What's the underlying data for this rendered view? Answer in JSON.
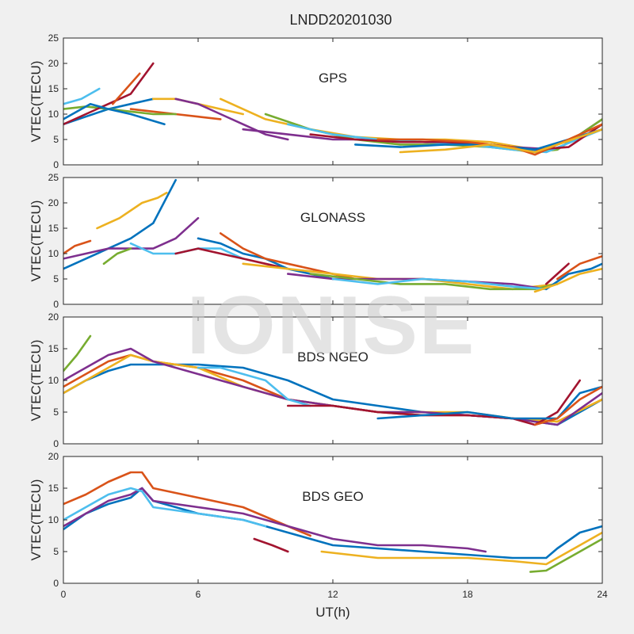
{
  "figure_title": "LNDD20201030",
  "watermark": "IONISE",
  "colors": [
    "#0072BD",
    "#D95319",
    "#EDB120",
    "#7E2F8E",
    "#77AC30",
    "#4DBEEE",
    "#A2142F"
  ],
  "chart_data": [
    {
      "type": "line",
      "label": "GPS",
      "ylabel": "VTEC(TECU)",
      "xlim": [
        0,
        24
      ],
      "ylim": [
        0,
        25
      ],
      "yticks": [
        0,
        5,
        10,
        15,
        20,
        25
      ],
      "xticks": [
        0,
        6,
        12,
        18,
        24
      ],
      "series": [
        {
          "x": [
            0,
            1,
            2,
            3,
            4
          ],
          "y": [
            8,
            9.5,
            11,
            12,
            13
          ]
        },
        {
          "x": [
            3,
            4,
            5,
            6,
            7
          ],
          "y": [
            11,
            10.5,
            10,
            9.5,
            9
          ]
        },
        {
          "x": [
            4,
            5,
            6,
            7,
            8
          ],
          "y": [
            13,
            13,
            12,
            11,
            10
          ]
        },
        {
          "x": [
            5,
            6,
            7,
            8,
            9,
            10
          ],
          "y": [
            13,
            12,
            10,
            8,
            6,
            5
          ]
        },
        {
          "x": [
            0,
            1,
            2,
            3,
            4,
            5
          ],
          "y": [
            11,
            11.5,
            11,
            10.5,
            10,
            10
          ]
        },
        {
          "x": [
            0,
            0.8,
            1.6
          ],
          "y": [
            12,
            13,
            15
          ]
        },
        {
          "x": [
            0,
            1,
            2,
            3,
            4
          ],
          "y": [
            8,
            10,
            12,
            14,
            20
          ]
        },
        {
          "x": [
            0,
            1.2,
            2,
            3,
            4.5
          ],
          "y": [
            9,
            12,
            11,
            10,
            8
          ]
        },
        {
          "x": [
            2.2,
            2.8,
            3.4
          ],
          "y": [
            12,
            15,
            18
          ]
        },
        {
          "x": [
            7,
            9,
            11,
            13,
            15,
            17,
            19,
            21,
            22,
            24
          ],
          "y": [
            13,
            9,
            7,
            5.5,
            5,
            5,
            4.5,
            3,
            4,
            8
          ]
        },
        {
          "x": [
            8,
            10,
            12,
            14,
            16,
            18,
            20,
            22,
            24
          ],
          "y": [
            7,
            6,
            5,
            5,
            4.5,
            4,
            3.5,
            3,
            9
          ]
        },
        {
          "x": [
            9,
            11,
            13,
            15,
            17,
            19,
            21,
            22,
            24
          ],
          "y": [
            10,
            7,
            5,
            4,
            4,
            3.5,
            2.5,
            3,
            9
          ]
        },
        {
          "x": [
            10,
            12,
            14,
            16,
            18,
            20,
            21.5,
            24
          ],
          "y": [
            8,
            6,
            5,
            4.5,
            4,
            3,
            2.5,
            7
          ]
        },
        {
          "x": [
            11,
            13,
            15,
            17,
            19,
            21,
            22.5,
            24
          ],
          "y": [
            6,
            5,
            4.5,
            4.5,
            4,
            3,
            3.5,
            8
          ]
        },
        {
          "x": [
            13,
            15,
            17,
            19,
            21,
            24
          ],
          "y": [
            4,
            3.5,
            4,
            4,
            3,
            7
          ]
        },
        {
          "x": [
            14,
            16,
            18,
            20,
            21,
            24
          ],
          "y": [
            5,
            5,
            4.5,
            3.5,
            2,
            8
          ]
        },
        {
          "x": [
            15,
            17,
            19,
            21,
            24
          ],
          "y": [
            2.5,
            3,
            4,
            2.5,
            7
          ]
        }
      ]
    },
    {
      "type": "line",
      "label": "GLONASS",
      "ylabel": "VTEC(TECU)",
      "xlim": [
        0,
        24
      ],
      "ylim": [
        0,
        25
      ],
      "yticks": [
        0,
        5,
        10,
        15,
        20,
        25
      ],
      "xticks": [
        0,
        6,
        12,
        18,
        24
      ],
      "series": [
        {
          "x": [
            0,
            1,
            2,
            3,
            4,
            5
          ],
          "y": [
            7,
            9,
            11,
            13,
            16,
            24.5
          ]
        },
        {
          "x": [
            0,
            0.5,
            1.2
          ],
          "y": [
            10,
            11.5,
            12.5
          ]
        },
        {
          "x": [
            1.5,
            2.5,
            3.5,
            4.2,
            4.6
          ],
          "y": [
            15,
            17,
            20,
            21,
            22
          ]
        },
        {
          "x": [
            0,
            1,
            2,
            3,
            4,
            5,
            6
          ],
          "y": [
            9,
            10,
            11,
            11,
            11,
            13,
            17
          ]
        },
        {
          "x": [
            1.8,
            2.4,
            3
          ],
          "y": [
            8,
            10,
            11
          ]
        },
        {
          "x": [
            3,
            4,
            5,
            6,
            7,
            8
          ],
          "y": [
            12,
            10,
            10,
            11,
            11,
            9
          ]
        },
        {
          "x": [
            5,
            6,
            7,
            8,
            9,
            10
          ],
          "y": [
            10,
            11,
            10,
            9,
            8,
            7
          ]
        },
        {
          "x": [
            6,
            7,
            8,
            9,
            10,
            11,
            12
          ],
          "y": [
            13,
            12,
            10,
            9,
            7,
            6,
            5
          ]
        },
        {
          "x": [
            7,
            8,
            9,
            10,
            11,
            12,
            13
          ],
          "y": [
            14,
            11,
            9,
            8,
            7,
            6,
            5
          ]
        },
        {
          "x": [
            8,
            10,
            12,
            14,
            16,
            18,
            20,
            22
          ],
          "y": [
            8,
            7,
            6,
            5,
            5,
            4,
            3,
            4
          ]
        },
        {
          "x": [
            10,
            12,
            14,
            16,
            18,
            20,
            21.5
          ],
          "y": [
            6,
            5,
            5,
            5,
            4.5,
            4,
            3
          ]
        },
        {
          "x": [
            11,
            13,
            15,
            17,
            19,
            21,
            22
          ],
          "y": [
            6,
            5,
            4,
            4,
            3,
            3,
            4
          ]
        },
        {
          "x": [
            12,
            14,
            16,
            18,
            20,
            21.5
          ],
          "y": [
            5,
            4,
            5,
            4.5,
            3.5,
            3
          ]
        },
        {
          "x": [
            21.5,
            22,
            22.5
          ],
          "y": [
            4,
            6,
            8
          ]
        },
        {
          "x": [
            21.5,
            22.5,
            23.5,
            24
          ],
          "y": [
            3,
            6,
            7,
            8
          ]
        },
        {
          "x": [
            22,
            23,
            24
          ],
          "y": [
            5,
            8,
            9.5
          ]
        },
        {
          "x": [
            21,
            22,
            23,
            24
          ],
          "y": [
            2.5,
            4,
            6,
            7
          ]
        }
      ]
    },
    {
      "type": "line",
      "label": "BDS NGEO",
      "ylabel": "VTEC(TECU)",
      "xlim": [
        0,
        24
      ],
      "ylim": [
        0,
        20
      ],
      "yticks": [
        0,
        5,
        10,
        15,
        20
      ],
      "xticks": [
        0,
        6,
        12,
        18,
        24
      ],
      "series": [
        {
          "x": [
            0,
            1,
            2,
            3,
            4,
            6,
            8,
            10,
            12,
            14,
            16,
            18,
            20,
            22,
            24
          ],
          "y": [
            8,
            10,
            11.5,
            12.5,
            12.5,
            12.5,
            12,
            10,
            7,
            6,
            5,
            4.5,
            4,
            3,
            7
          ]
        },
        {
          "x": [
            0,
            1,
            2,
            3,
            4,
            6,
            8,
            10,
            12,
            14,
            16,
            18,
            20,
            22,
            24
          ],
          "y": [
            9,
            11,
            13,
            14,
            13,
            12,
            10,
            7,
            6,
            5,
            4.5,
            4.5,
            4,
            3.5,
            7
          ]
        },
        {
          "x": [
            0,
            1,
            2,
            3,
            4,
            6,
            8,
            10,
            12,
            14,
            16,
            18,
            20,
            22,
            24
          ],
          "y": [
            8,
            10,
            12,
            14,
            13,
            12,
            9,
            7,
            6,
            5,
            5,
            5,
            4,
            3.5,
            7
          ]
        },
        {
          "x": [
            0,
            1,
            2,
            3,
            4,
            6,
            8,
            10,
            12,
            14,
            16,
            18,
            20,
            22,
            24
          ],
          "y": [
            10,
            12,
            14,
            15,
            13,
            11,
            9,
            7,
            6,
            5,
            5,
            4.5,
            4,
            3,
            8
          ]
        },
        {
          "x": [
            0,
            0.6,
            1.2
          ],
          "y": [
            11.5,
            14,
            17
          ]
        },
        {
          "x": [
            6,
            7,
            8,
            9,
            10,
            11
          ],
          "y": [
            12,
            12,
            11,
            10,
            7,
            6
          ]
        },
        {
          "x": [
            10,
            12,
            14,
            16,
            18,
            20,
            21,
            22,
            23
          ],
          "y": [
            6,
            6,
            5,
            4.5,
            4.5,
            4,
            3,
            5,
            10
          ]
        },
        {
          "x": [
            14,
            16,
            18,
            20,
            22,
            23,
            24
          ],
          "y": [
            4,
            4.5,
            5,
            4,
            4,
            8,
            9
          ]
        },
        {
          "x": [
            21,
            22,
            23,
            24
          ],
          "y": [
            3,
            4,
            7,
            9
          ]
        }
      ]
    },
    {
      "type": "line",
      "label": "BDS GEO",
      "ylabel": "VTEC(TECU)",
      "xlim": [
        0,
        24
      ],
      "ylim": [
        0,
        20
      ],
      "yticks": [
        0,
        5,
        10,
        15,
        20
      ],
      "xticks": [
        0,
        6,
        12,
        18,
        24
      ],
      "series": [
        {
          "x": [
            0,
            1,
            2,
            3,
            3.5,
            4,
            6,
            8,
            10,
            12,
            14,
            16,
            18,
            20,
            21.5,
            22,
            23,
            24
          ],
          "y": [
            8.5,
            11,
            12.5,
            13.5,
            15,
            13,
            11,
            10,
            8,
            6,
            5.5,
            5,
            4.5,
            4,
            4,
            5.5,
            8,
            9
          ]
        },
        {
          "x": [
            0,
            1,
            2,
            3,
            3.5,
            4,
            6,
            8,
            10,
            11
          ],
          "y": [
            12.5,
            14,
            16,
            17.5,
            17.5,
            15,
            13.5,
            12,
            9,
            7.5
          ]
        },
        {
          "x": [
            11.5,
            14,
            16,
            18,
            20,
            21.5,
            22,
            23,
            24
          ],
          "y": [
            5,
            4,
            4,
            4,
            3.5,
            3,
            4,
            6,
            8
          ]
        },
        {
          "x": [
            0,
            1,
            2,
            3,
            3.5,
            4,
            6,
            8,
            10,
            12,
            14,
            16,
            18,
            18.8
          ],
          "y": [
            9,
            11,
            13,
            14,
            15,
            13,
            12,
            11,
            9,
            7,
            6,
            6,
            5.5,
            5
          ]
        },
        {
          "x": [
            20.8,
            21.5,
            22,
            23,
            24
          ],
          "y": [
            1.8,
            2,
            3,
            5,
            7
          ]
        },
        {
          "x": [
            0,
            1,
            2,
            3,
            3.5,
            4,
            6,
            8,
            9
          ],
          "y": [
            10,
            12,
            14,
            15,
            14.5,
            12,
            11,
            10,
            9
          ]
        },
        {
          "x": [
            8.5,
            9.3,
            10
          ],
          "y": [
            7,
            6,
            5
          ]
        }
      ]
    }
  ],
  "xlabel": "UT(h)",
  "xticks_labels": [
    "0",
    "6",
    "12",
    "18",
    "24"
  ]
}
